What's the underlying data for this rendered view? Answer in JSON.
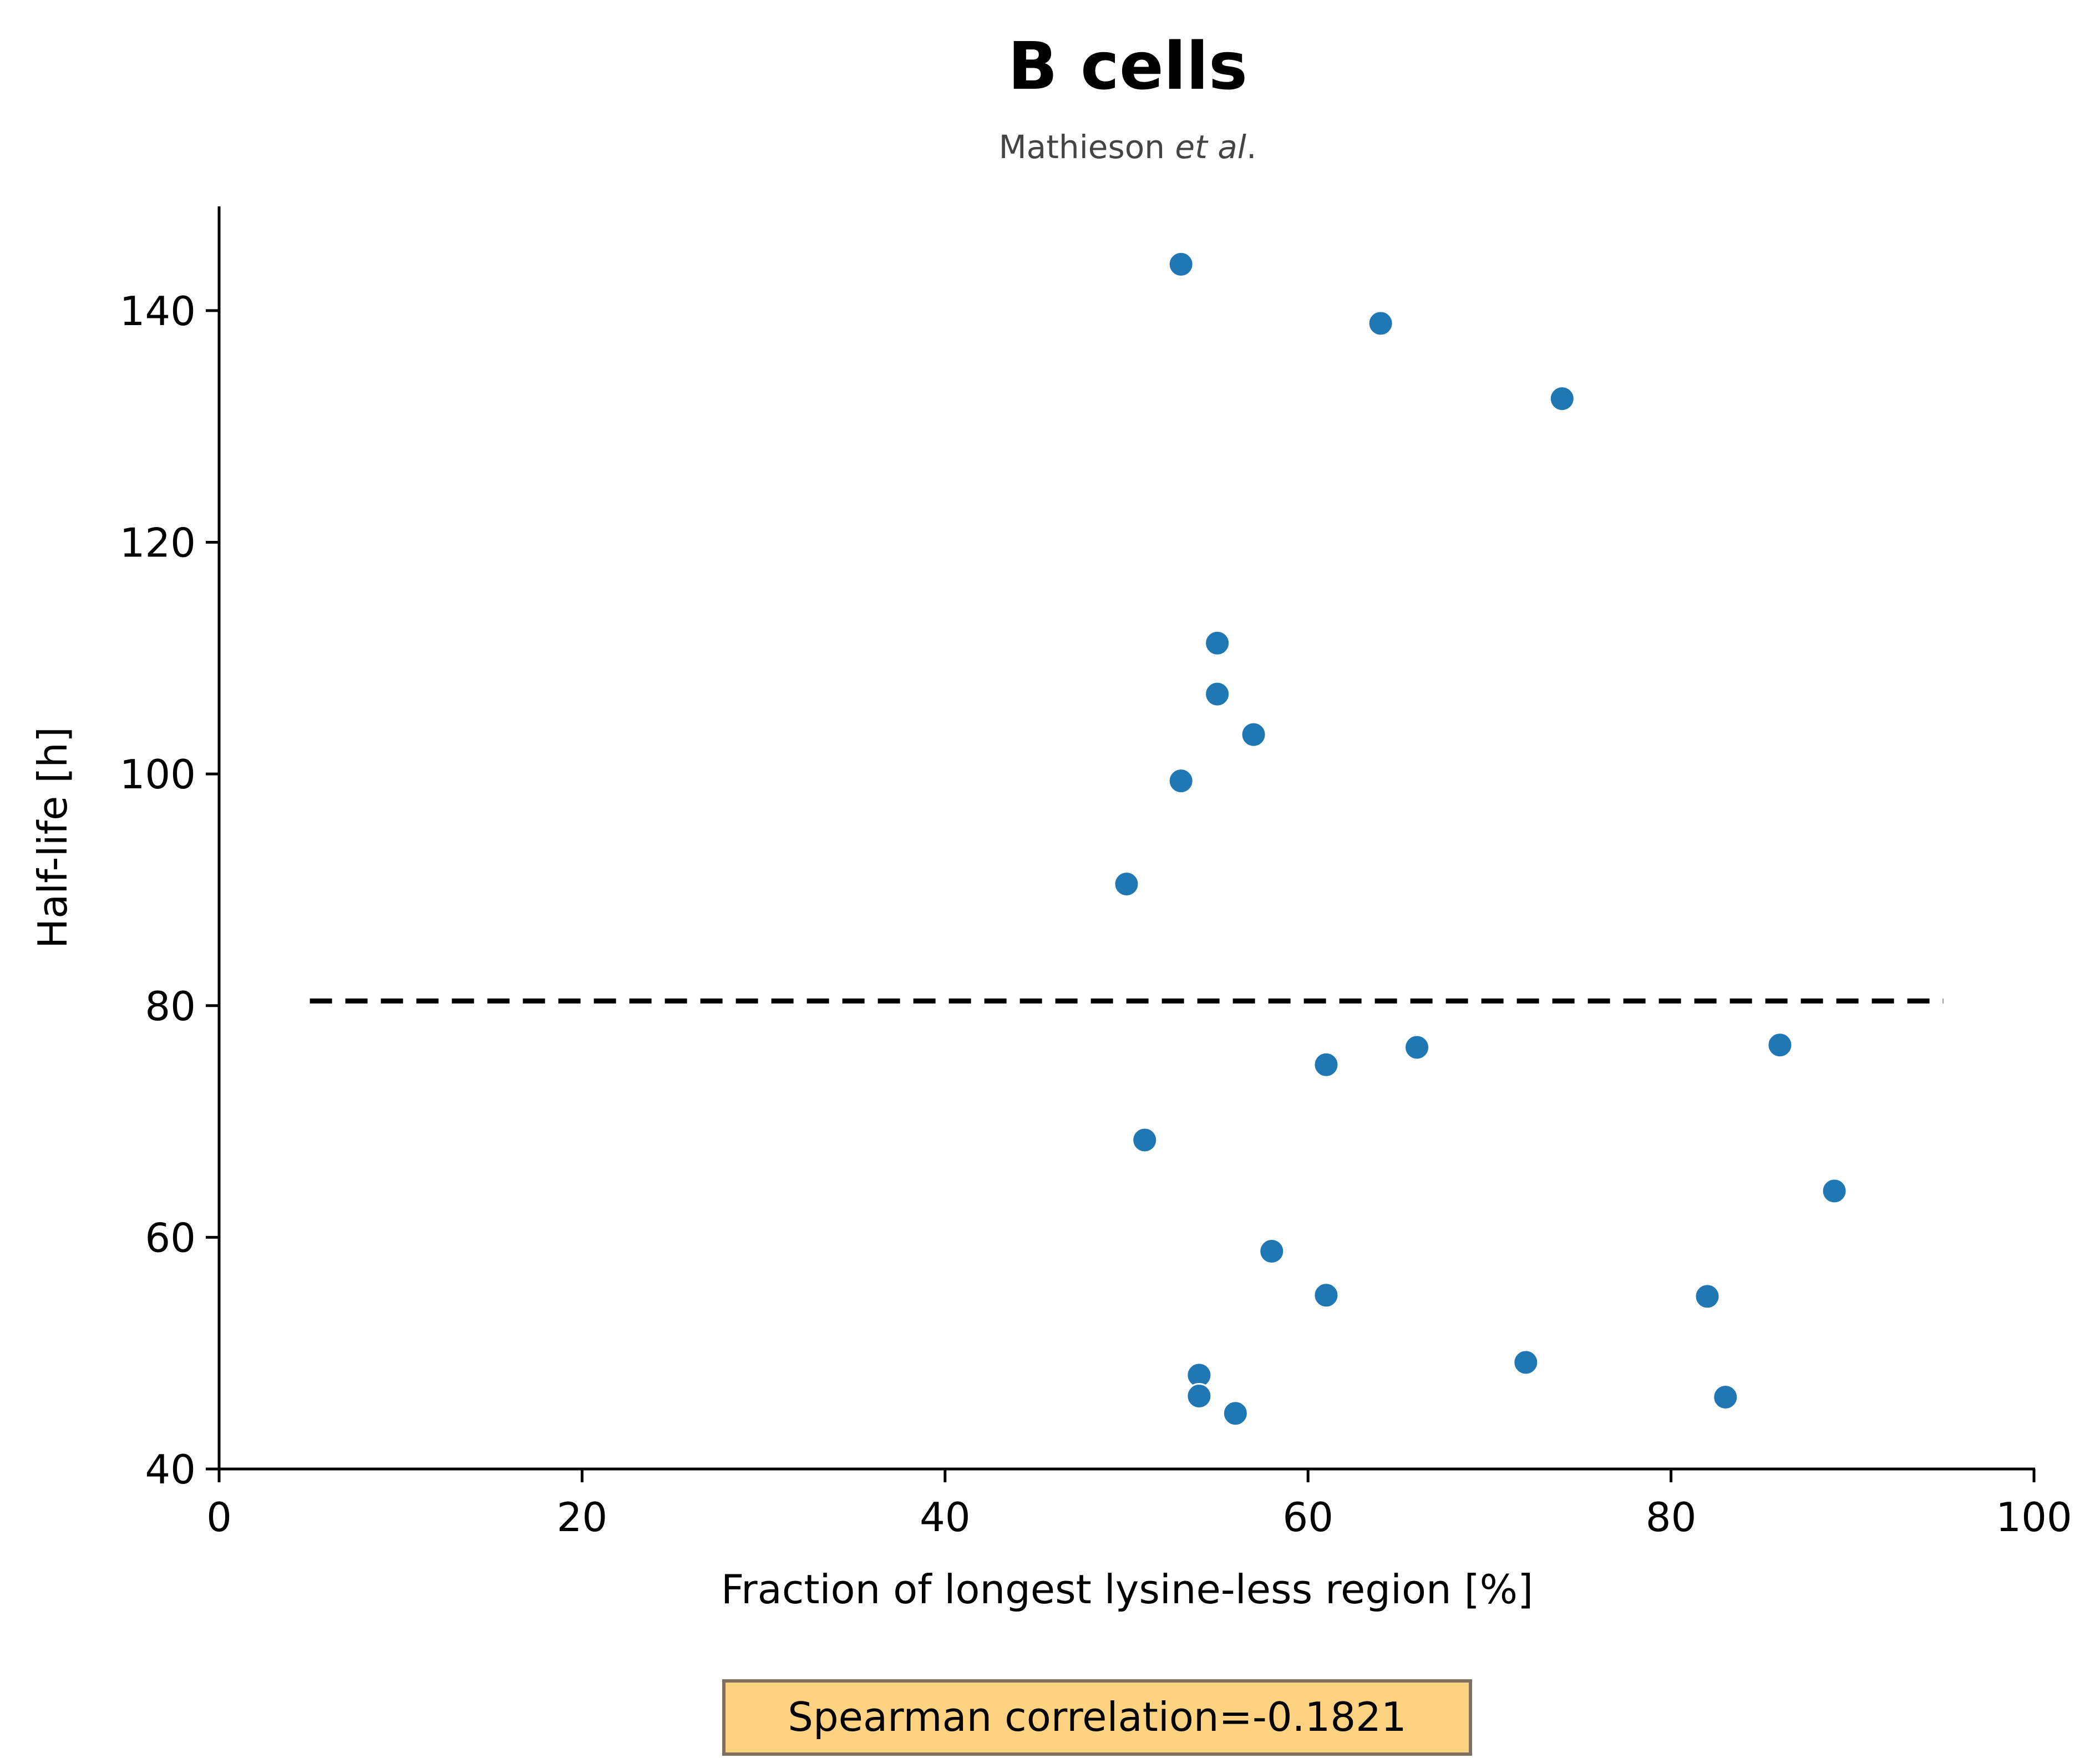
{
  "chart_data": {
    "type": "scatter",
    "title": "B cells",
    "subtitle_main": "Mathieson ",
    "subtitle_italic": "et al",
    "subtitle_end": ".",
    "xlabel": "Fraction of longest lysine-less region [%]",
    "ylabel": "Half-life [h]",
    "xlim": [
      0,
      100
    ],
    "ylim": [
      40,
      149
    ],
    "xticks": [
      0,
      20,
      40,
      60,
      80,
      100
    ],
    "yticks": [
      40,
      60,
      80,
      100,
      120,
      140
    ],
    "grid": false,
    "point_color": "#1f77b4",
    "reference_line": {
      "y": 80.4,
      "x_start": 5,
      "x_end": 95,
      "style": "dashed",
      "color": "#000000"
    },
    "annotation": {
      "text": "Spearman correlation=-0.1821",
      "background": "#fdd281",
      "border": "#7f7060"
    },
    "points": [
      {
        "x": 53,
        "y": 144.0
      },
      {
        "x": 64,
        "y": 138.9
      },
      {
        "x": 74,
        "y": 132.4
      },
      {
        "x": 55,
        "y": 111.3
      },
      {
        "x": 55,
        "y": 106.9
      },
      {
        "x": 57,
        "y": 103.4
      },
      {
        "x": 53,
        "y": 99.4
      },
      {
        "x": 50,
        "y": 90.5
      },
      {
        "x": 66,
        "y": 76.4
      },
      {
        "x": 86,
        "y": 76.6
      },
      {
        "x": 61,
        "y": 74.9
      },
      {
        "x": 51,
        "y": 68.4
      },
      {
        "x": 89,
        "y": 64.0
      },
      {
        "x": 58,
        "y": 58.8
      },
      {
        "x": 61,
        "y": 55.0
      },
      {
        "x": 82,
        "y": 54.9
      },
      {
        "x": 72,
        "y": 49.2
      },
      {
        "x": 54,
        "y": 48.1
      },
      {
        "x": 54,
        "y": 46.3
      },
      {
        "x": 83,
        "y": 46.2
      },
      {
        "x": 56,
        "y": 44.8
      }
    ]
  }
}
